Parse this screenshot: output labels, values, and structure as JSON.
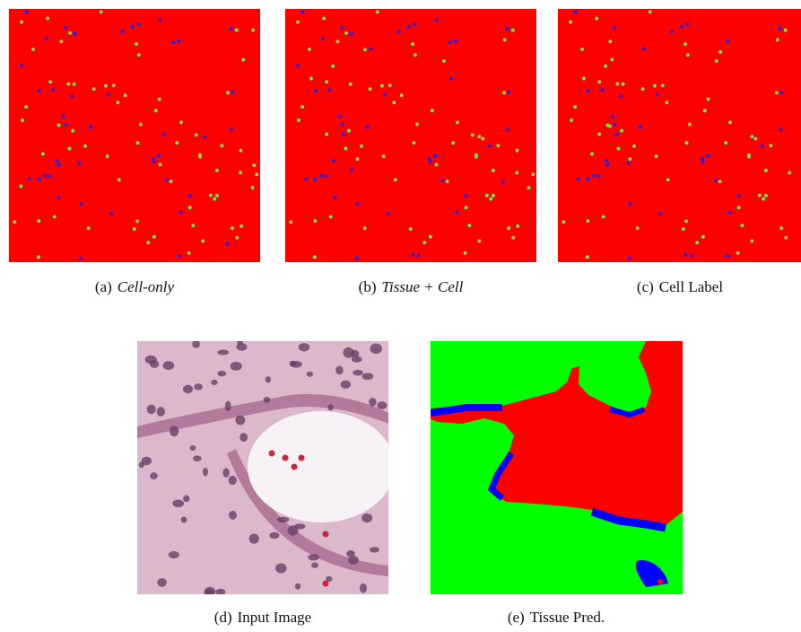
{
  "panels": [
    {
      "label": "(a)",
      "caption": "Cell-only"
    },
    {
      "label": "(b)",
      "caption": "Tissue + Cell"
    },
    {
      "label": "(c)",
      "caption": "Cell Label"
    },
    {
      "label": "(d)",
      "caption": "Input Image"
    },
    {
      "label": "(e)",
      "caption": "Tissue Pred."
    }
  ]
}
